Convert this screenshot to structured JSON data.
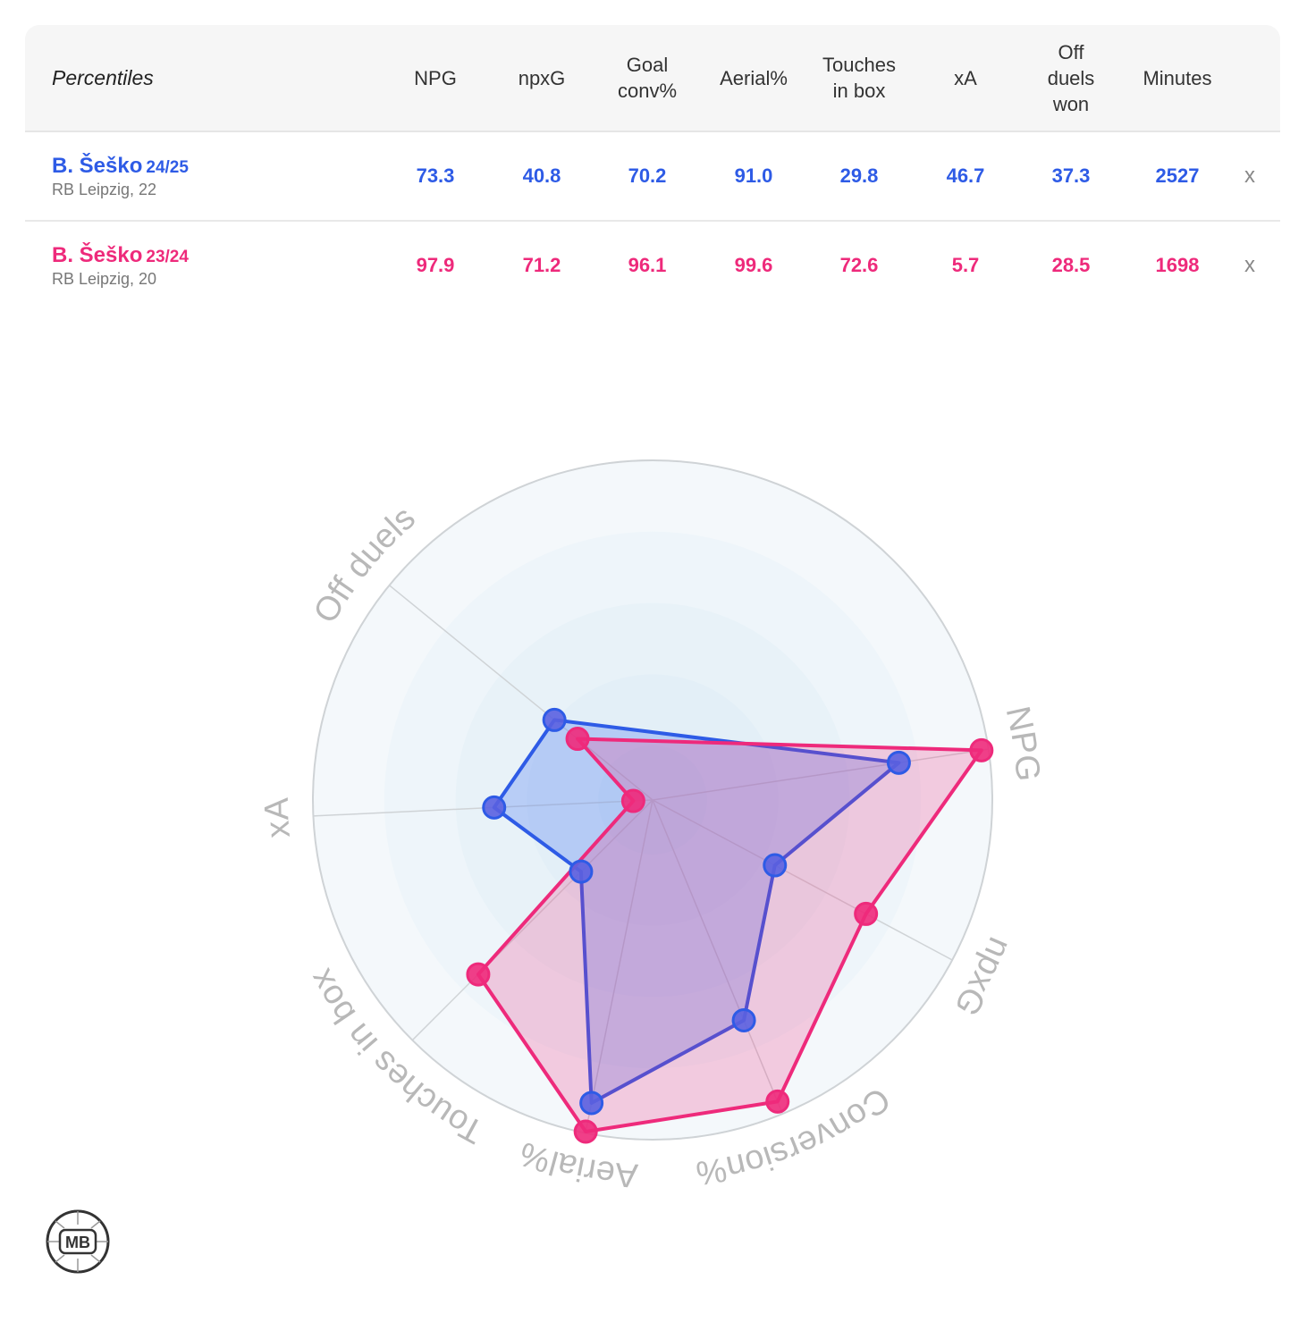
{
  "table": {
    "title": "Percentiles",
    "headers": [
      [
        "NPG"
      ],
      [
        "npxG"
      ],
      [
        "Goal",
        "conv%"
      ],
      [
        "Aerial%"
      ],
      [
        "Touches",
        "in box"
      ],
      [
        "xA"
      ],
      [
        "Off",
        "duels",
        "won"
      ],
      [
        "Minutes"
      ]
    ],
    "remove_label": "x",
    "rows": [
      {
        "name": "B. Šeško",
        "season": "24/25",
        "team": "RB Leipzig, 22",
        "color": "#2e5be6",
        "values": [
          "73.3",
          "40.8",
          "70.2",
          "91.0",
          "29.8",
          "46.7",
          "37.3",
          "2527"
        ]
      },
      {
        "name": "B. Šeško",
        "season": "23/24",
        "team": "RB Leipzig, 20",
        "color": "#ee2a7b",
        "values": [
          "97.9",
          "71.2",
          "96.1",
          "99.6",
          "72.6",
          "5.7",
          "28.5",
          "1698"
        ]
      }
    ]
  },
  "chart_data": {
    "type": "radar",
    "axes": [
      "NPG",
      "npxG",
      "Conversion%",
      "Aerial%",
      "Touches in box",
      "xA",
      "Off duels"
    ],
    "range": [
      0,
      100
    ],
    "series": [
      {
        "name": "B. Šeško 24/25",
        "color": "#2e5be6",
        "values": [
          73.3,
          40.8,
          70.2,
          91.0,
          29.8,
          46.7,
          37.3
        ]
      },
      {
        "name": "B. Šeško 23/24",
        "color": "#ee2a7b",
        "values": [
          97.9,
          71.2,
          96.1,
          99.6,
          72.6,
          5.7,
          28.5
        ]
      }
    ]
  },
  "logo": {
    "text": "MB"
  }
}
